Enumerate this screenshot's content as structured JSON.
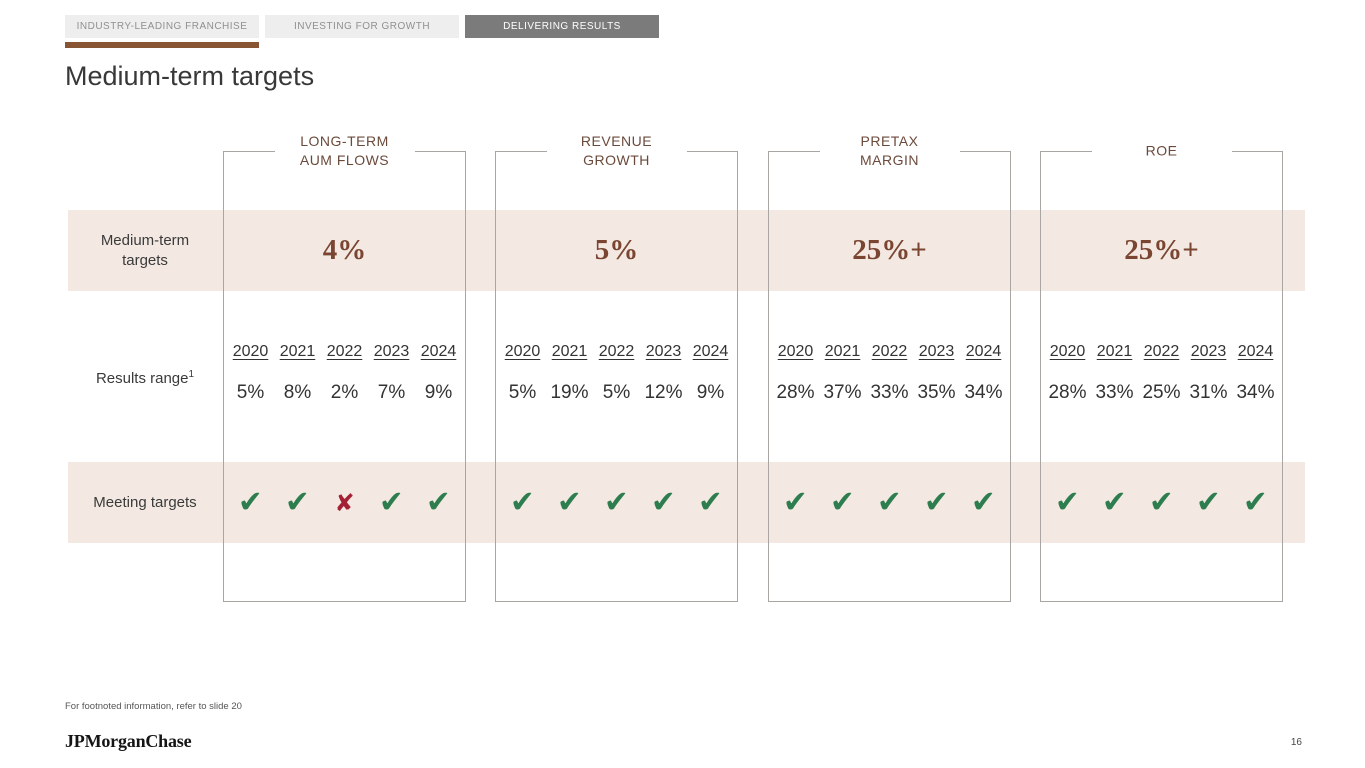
{
  "tabs": [
    {
      "label": "INDUSTRY-LEADING FRANCHISE",
      "active": false
    },
    {
      "label": "INVESTING FOR GROWTH",
      "active": false
    },
    {
      "label": "DELIVERING RESULTS",
      "active": true
    }
  ],
  "title": "Medium-term targets",
  "rows": {
    "targets_label": "Medium-term targets",
    "results_label": "Results range",
    "results_footnote_marker": "1",
    "meeting_label": "Meeting targets"
  },
  "years": [
    "2020",
    "2021",
    "2022",
    "2023",
    "2024"
  ],
  "columns": [
    {
      "header_line1": "LONG-TERM",
      "header_line2": "AUM FLOWS",
      "target": "4%",
      "results": [
        "5%",
        "8%",
        "2%",
        "7%",
        "9%"
      ],
      "meeting": [
        "✔",
        "✔",
        "✘",
        "✔",
        "✔"
      ]
    },
    {
      "header_line1": "REVENUE",
      "header_line2": "GROWTH",
      "target": "5%",
      "results": [
        "5%",
        "19%",
        "5%",
        "12%",
        "9%"
      ],
      "meeting": [
        "✔",
        "✔",
        "✔",
        "✔",
        "✔"
      ]
    },
    {
      "header_line1": "PRETAX",
      "header_line2": "MARGIN",
      "target": "25%+",
      "results": [
        "28%",
        "37%",
        "33%",
        "35%",
        "34%"
      ],
      "meeting": [
        "✔",
        "✔",
        "✔",
        "✔",
        "✔"
      ]
    },
    {
      "header_line1": "ROE",
      "header_line2": "",
      "target": "25%+",
      "results": [
        "28%",
        "33%",
        "25%",
        "31%",
        "34%"
      ],
      "meeting": [
        "✔",
        "✔",
        "✔",
        "✔",
        "✔"
      ]
    }
  ],
  "footnote": "For footnoted information, refer to slide 20",
  "logo": "JPMorganChase",
  "page_number": "16",
  "colors": {
    "accent_brown": "#875434",
    "header_brown": "#6b4a3b",
    "target_maroon": "#7a4632",
    "band_beige": "#f3e9e2",
    "check_green": "#2e7d4f",
    "cross_red": "#a32035"
  }
}
